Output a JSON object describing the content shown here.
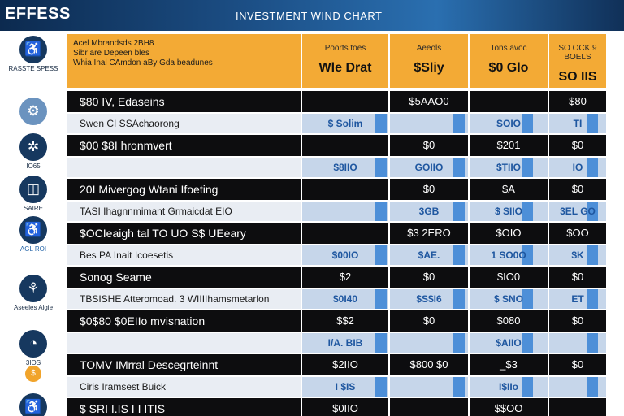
{
  "header": {
    "brand": "EFFESS",
    "title": "INVESTMENT WIND CHART"
  },
  "sidebar": [
    {
      "icon": "figure-icon",
      "glyph": "♿",
      "label": "RASSTE SPESS",
      "style": "dark"
    },
    {
      "icon": "gauge-icon",
      "glyph": "⚙",
      "label": "",
      "style": "light"
    },
    {
      "icon": "fan-icon",
      "glyph": "✲",
      "label": "IO65",
      "style": "dark"
    },
    {
      "icon": "monitor-icon",
      "glyph": "◫",
      "label": "SAIRE",
      "style": "dark"
    },
    {
      "icon": "person-icon",
      "glyph": "♿",
      "label": "AGL ROI",
      "style": "dark"
    },
    {
      "icon": "wheel-icon",
      "glyph": "⚘",
      "label": "Aseeles Algie",
      "style": "dark"
    },
    {
      "icon": "gauge-icon-2",
      "glyph": "◔",
      "label": "3IOS",
      "style": "dark"
    },
    {
      "icon": "coin-icon",
      "glyph": "$",
      "label": "",
      "style": "gold"
    },
    {
      "icon": "walker-icon",
      "glyph": "♿",
      "label": "",
      "style": "dark"
    }
  ],
  "chart_data": {
    "type": "table",
    "title": "INVESTMENT WIND CHART",
    "header_text": [
      "Acel Mbrandsds 2BH8",
      "Sibr are Depeen bles",
      "Whia Inal CAmdon aBy Gda beadunes"
    ],
    "columns": [
      {
        "label": "Poorts toes",
        "value": "Wle Drat"
      },
      {
        "label": "Aeeols",
        "value": "$Sliy"
      },
      {
        "label": "Tons avoc",
        "value": "$0 Glo"
      },
      {
        "label": "SO OCK 9 BOELS",
        "value": "SO IIS"
      }
    ],
    "rows": [
      {
        "label": "$80 IV, Edaseins",
        "style": "dark",
        "values": [
          "",
          "$5AAO0",
          "",
          "$80"
        ]
      },
      {
        "label": "Swen CI SSAchaorong",
        "style": "light",
        "values": [
          "$ Solim",
          "",
          "SOIO",
          "TI"
        ]
      },
      {
        "label": "$00 $8I hronmvert",
        "style": "dark",
        "values": [
          "",
          "$0",
          "$201",
          "$0"
        ]
      },
      {
        "label": "",
        "style": "light",
        "values": [
          "$8IIO",
          "GOIIO",
          "$TIIO",
          "IO"
        ]
      },
      {
        "label": "20I Mivergog Wtani Ifoeting",
        "style": "dark",
        "values": [
          "",
          "$0",
          "$A",
          "$0"
        ]
      },
      {
        "label": "TASI Ihagnnmimant Grmaicdat EIO",
        "style": "light",
        "values": [
          "",
          "3GB",
          "$ SIIO",
          "3EL GO"
        ]
      },
      {
        "label": "$OCIeaigh tal TO UO S$ UEeary",
        "style": "dark",
        "values": [
          "",
          "$3 2ERO",
          "$OIO",
          "$OO"
        ]
      },
      {
        "label": "Bes PA Inait Icoesetis",
        "style": "light",
        "values": [
          "$00IO",
          "$AE.",
          "1 SO0O",
          "$K"
        ]
      },
      {
        "label": "Sonog Seame",
        "style": "dark",
        "values": [
          "$2",
          "$0",
          "$IO0",
          "$0"
        ]
      },
      {
        "label": "TBSISHE Atteromoad. 3 WIIIIhamsmetarlon",
        "style": "light",
        "values": [
          "$0I40",
          "$S$I6",
          "$ SNO",
          "ET"
        ]
      },
      {
        "label": "$0$80 $0EIIo mvisnation",
        "style": "dark",
        "values": [
          "$$2",
          "$0",
          "$080",
          "$0"
        ]
      },
      {
        "label": "",
        "style": "light",
        "values": [
          "I/A. BIB",
          "",
          "$AIIO",
          ""
        ]
      },
      {
        "label": "TOMV IMrral Descegrteinnt",
        "style": "dark",
        "values": [
          "$2IIO",
          "$800 $0",
          "_$3",
          "$0"
        ]
      },
      {
        "label": "Ciris Iramsest Buick",
        "style": "light",
        "values": [
          "I $IS",
          "",
          "I$IIo",
          ""
        ]
      },
      {
        "label": "$ SRI I.IS I I ITIS",
        "style": "dark",
        "values": [
          "$0IIO",
          "",
          "$$OO",
          ""
        ]
      }
    ]
  }
}
